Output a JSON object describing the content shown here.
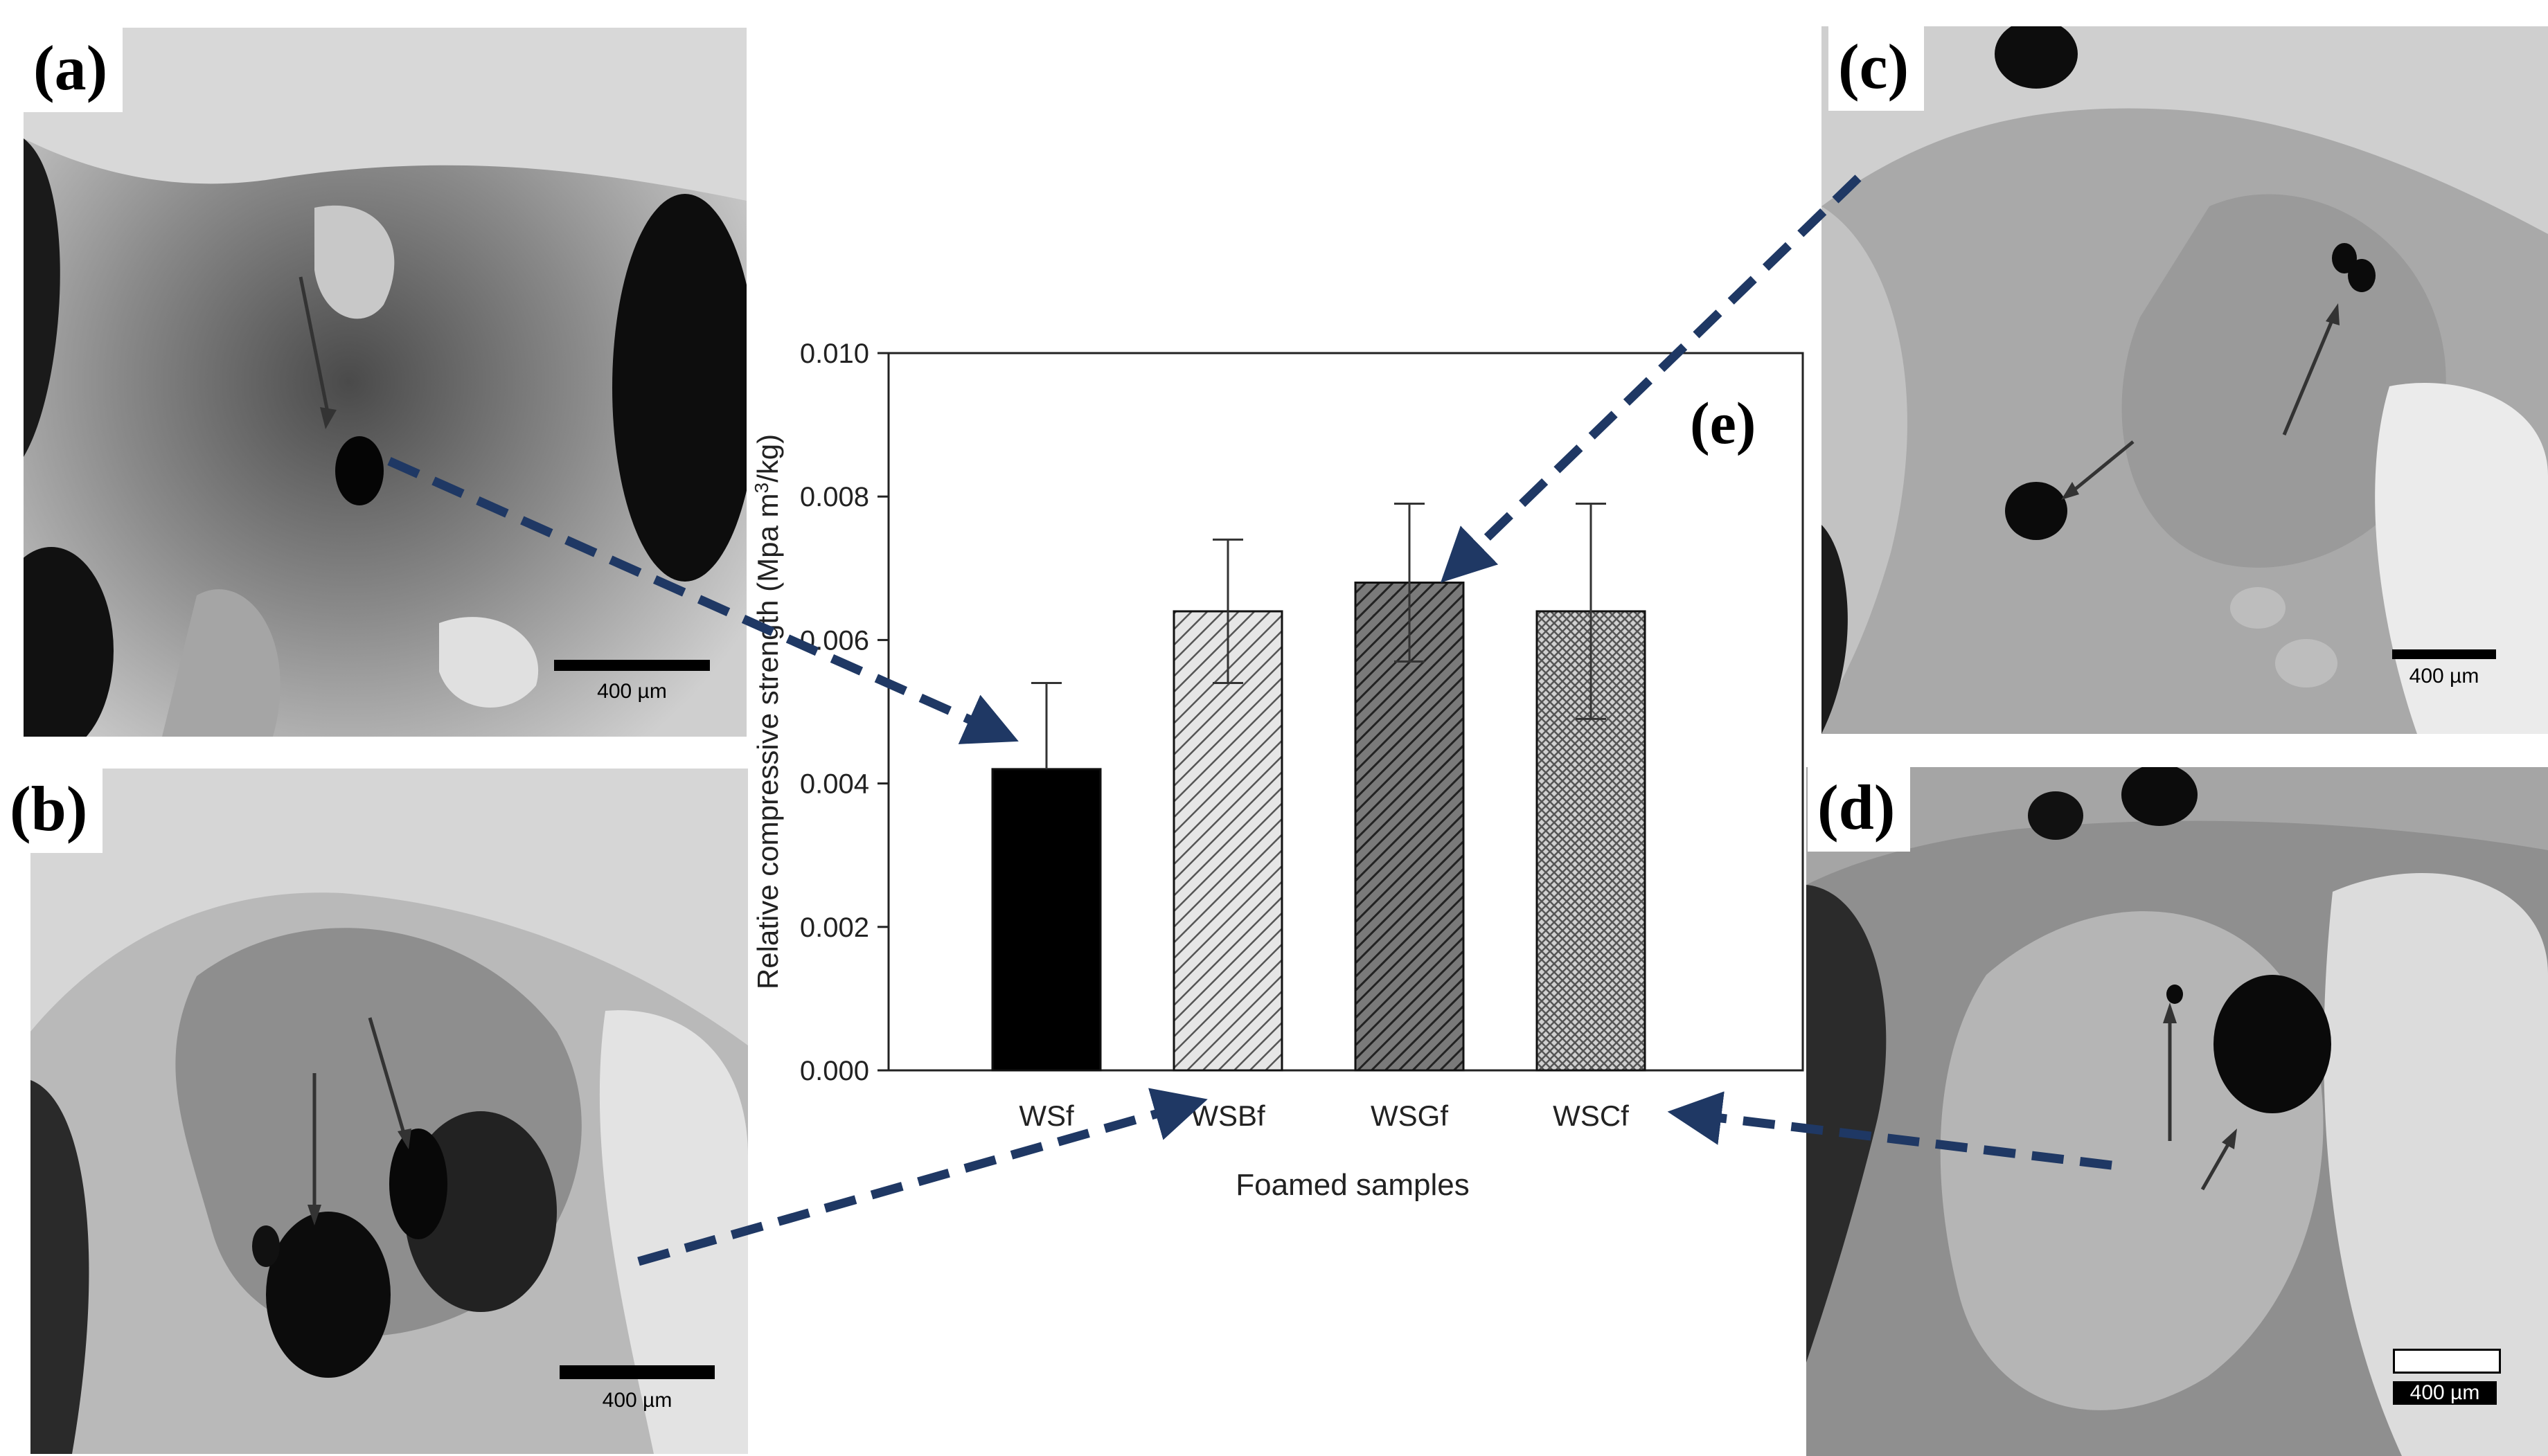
{
  "panels": [
    {
      "tag": "(a)",
      "scale_label": "400 µm"
    },
    {
      "tag": "(b)",
      "scale_label": "400 µm"
    },
    {
      "tag": "(c)",
      "scale_label": "400 µm"
    },
    {
      "tag": "(d)",
      "scale_label": "400 µm"
    }
  ],
  "chart_data": {
    "type": "bar",
    "panel_tag": "(e)",
    "categories": [
      "WSf",
      "WSBf",
      "WSGf",
      "WSCf"
    ],
    "values": [
      0.0042,
      0.0064,
      0.0068,
      0.0064
    ],
    "error_upper": [
      0.0054,
      0.0074,
      0.0079,
      0.0079
    ],
    "error_lower": [
      null,
      0.0054,
      0.0057,
      0.0049
    ],
    "fills": [
      "solid-black",
      "diagonal-hatch-light",
      "diagonal-hatch-dark",
      "crosshatch"
    ],
    "xlabel": "Foamed samples",
    "ylabel": "Relative compressive strength (Mpa m",
    "ylabel_sup": "3",
    "ylabel_end": "/kg)",
    "ylim": [
      0,
      0.01
    ],
    "yticks": [
      "0.000",
      "0.002",
      "0.004",
      "0.006",
      "0.008",
      "0.010"
    ],
    "grid": false,
    "arrow_color": "#1f3864"
  }
}
